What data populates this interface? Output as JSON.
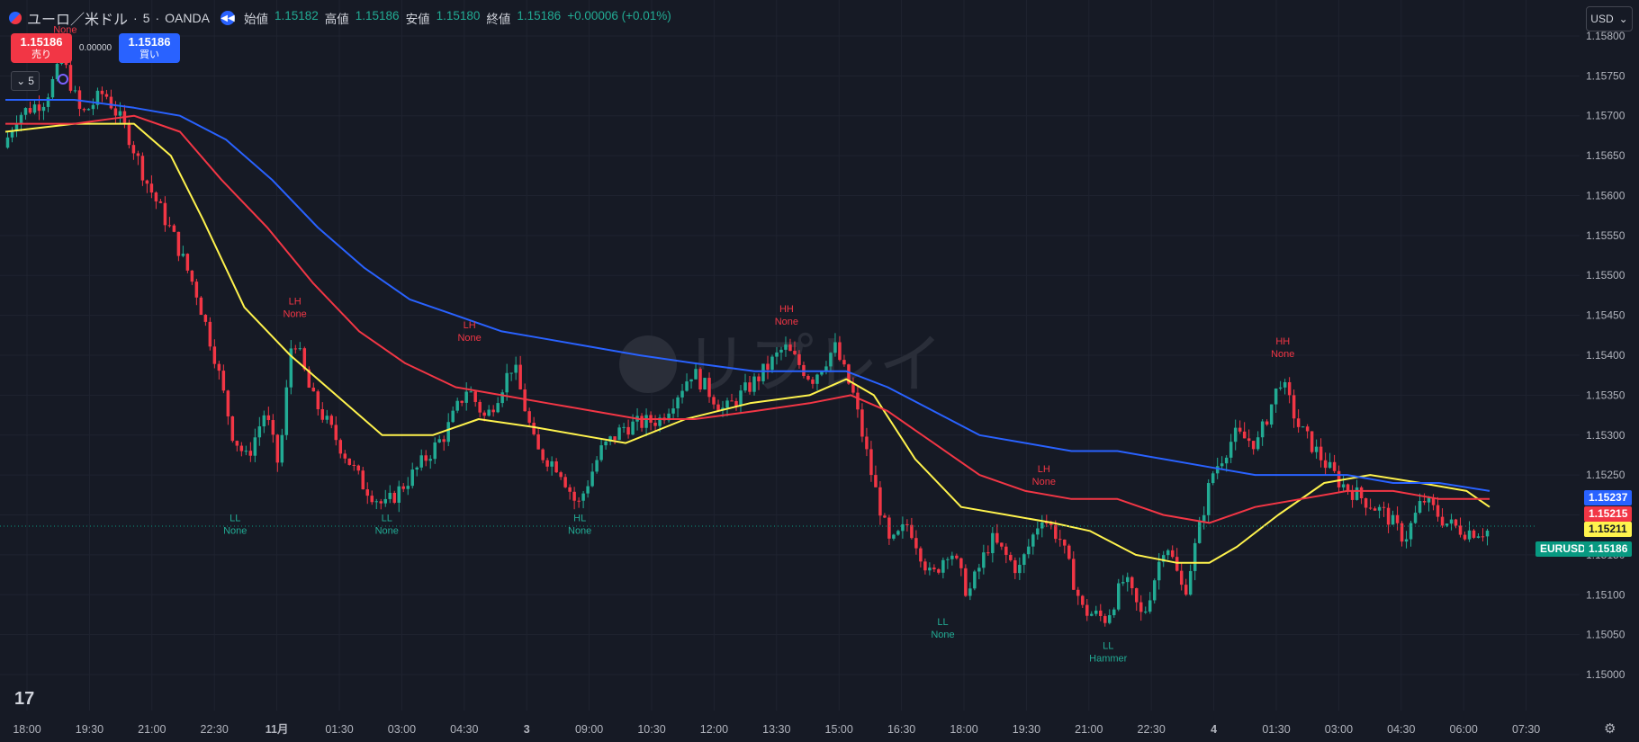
{
  "header": {
    "symbol": "ユーロ／米ドル",
    "interval": "5",
    "exchange": "OANDA",
    "separator": "·",
    "ohlc": [
      {
        "label": "始値",
        "value": "1.15182"
      },
      {
        "label": "高値",
        "value": "1.15186"
      },
      {
        "label": "安値",
        "value": "1.15180"
      },
      {
        "label": "終値",
        "value": "1.15186"
      }
    ],
    "change": "+0.00006 (+0.01%)"
  },
  "trade": {
    "sell_price": "1.15186",
    "sell_label": "売り",
    "spread": "0.00000",
    "buy_price": "1.15186",
    "buy_label": "買い"
  },
  "indicator_count": "5",
  "currency_selector": "USD",
  "watermark": "リプレイ",
  "colors": {
    "bg": "#161a25",
    "grid": "#1f2330",
    "up": "#22ab94",
    "down": "#f23645",
    "ma_fast": "#fff34d",
    "ma_mid": "#f23645",
    "ma_slow": "#2962ff",
    "label_high": "#f23645",
    "label_low": "#22ab94"
  },
  "chart_data": {
    "type": "candlestick",
    "instrument": "EURUSD",
    "price_axis": {
      "ticks": [
        1.158,
        1.1575,
        1.157,
        1.1565,
        1.156,
        1.1555,
        1.155,
        1.1545,
        1.154,
        1.1535,
        1.153,
        1.1525,
        1.152,
        1.1515,
        1.151,
        1.1505,
        1.15
      ],
      "tick_labels": [
        "1.15800",
        "1.15750",
        "1.15700",
        "1.15650",
        "1.15600",
        "1.15550",
        "1.15500",
        "1.15450",
        "1.15400",
        "1.15350",
        "1.15300",
        "1.15250",
        "1.15200",
        "1.15150",
        "1.15100",
        "1.15050",
        "1.15000"
      ],
      "range": [
        1.14955,
        1.15845
      ]
    },
    "time_axis": {
      "labels": [
        "18:00",
        "19:30",
        "21:00",
        "22:30",
        "11月",
        "01:30",
        "03:00",
        "04:30",
        "3",
        "09:00",
        "10:30",
        "12:00",
        "13:30",
        "15:00",
        "16:30",
        "18:00",
        "19:30",
        "21:00",
        "22:30",
        "4",
        "01:30",
        "03:00",
        "04:30",
        "06:00",
        "07:30"
      ],
      "bold": [
        "11月",
        "3",
        "4"
      ]
    },
    "price_path": [
      {
        "t": 0,
        "p": 1.1566
      },
      {
        "t": 0.3,
        "p": 1.157
      },
      {
        "t": 0.9,
        "p": 1.1572
      },
      {
        "t": 1.3,
        "p": 1.1577
      },
      {
        "t": 1.7,
        "p": 1.157
      },
      {
        "t": 2.2,
        "p": 1.1573
      },
      {
        "t": 2.7,
        "p": 1.1568
      },
      {
        "t": 3.1,
        "p": 1.1562
      },
      {
        "t": 3.7,
        "p": 1.1555
      },
      {
        "t": 4.2,
        "p": 1.1548
      },
      {
        "t": 4.6,
        "p": 1.154
      },
      {
        "t": 5.0,
        "p": 1.153
      },
      {
        "t": 5.3,
        "p": 1.1527
      },
      {
        "t": 5.7,
        "p": 1.1533
      },
      {
        "t": 6.0,
        "p": 1.1526
      },
      {
        "t": 6.3,
        "p": 1.1543
      },
      {
        "t": 6.7,
        "p": 1.1535
      },
      {
        "t": 7.2,
        "p": 1.153
      },
      {
        "t": 7.8,
        "p": 1.1524
      },
      {
        "t": 8.3,
        "p": 1.1521
      },
      {
        "t": 8.9,
        "p": 1.1525
      },
      {
        "t": 9.6,
        "p": 1.153
      },
      {
        "t": 10.1,
        "p": 1.1536
      },
      {
        "t": 10.5,
        "p": 1.1532
      },
      {
        "t": 11.1,
        "p": 1.1539
      },
      {
        "t": 11.6,
        "p": 1.1528
      },
      {
        "t": 12.1,
        "p": 1.1526
      },
      {
        "t": 12.5,
        "p": 1.1521
      },
      {
        "t": 13.0,
        "p": 1.1528
      },
      {
        "t": 13.5,
        "p": 1.1531
      },
      {
        "t": 14.3,
        "p": 1.1532
      },
      {
        "t": 15.0,
        "p": 1.1538
      },
      {
        "t": 15.7,
        "p": 1.1533
      },
      {
        "t": 16.4,
        "p": 1.1537
      },
      {
        "t": 17.0,
        "p": 1.1541
      },
      {
        "t": 17.6,
        "p": 1.1537
      },
      {
        "t": 18.1,
        "p": 1.1541
      },
      {
        "t": 18.5,
        "p": 1.1535
      },
      {
        "t": 18.9,
        "p": 1.1525
      },
      {
        "t": 19.3,
        "p": 1.1516
      },
      {
        "t": 19.7,
        "p": 1.1519
      },
      {
        "t": 20.2,
        "p": 1.1512
      },
      {
        "t": 20.6,
        "p": 1.1516
      },
      {
        "t": 21.0,
        "p": 1.151
      },
      {
        "t": 21.5,
        "p": 1.1517
      },
      {
        "t": 22.1,
        "p": 1.1513
      },
      {
        "t": 22.6,
        "p": 1.152
      },
      {
        "t": 23.0,
        "p": 1.1517
      },
      {
        "t": 23.5,
        "p": 1.1508
      },
      {
        "t": 24.0,
        "p": 1.1507
      },
      {
        "t": 24.4,
        "p": 1.1512
      },
      {
        "t": 24.8,
        "p": 1.1507
      },
      {
        "t": 25.3,
        "p": 1.1517
      },
      {
        "t": 25.7,
        "p": 1.151
      },
      {
        "t": 26.3,
        "p": 1.1525
      },
      {
        "t": 26.8,
        "p": 1.153
      },
      {
        "t": 27.3,
        "p": 1.1529
      },
      {
        "t": 27.8,
        "p": 1.1537
      },
      {
        "t": 28.2,
        "p": 1.1531
      },
      {
        "t": 28.7,
        "p": 1.1527
      },
      {
        "t": 29.1,
        "p": 1.1524
      },
      {
        "t": 29.6,
        "p": 1.1522
      },
      {
        "t": 30.1,
        "p": 1.152
      },
      {
        "t": 30.5,
        "p": 1.1517
      },
      {
        "t": 30.9,
        "p": 1.1522
      },
      {
        "t": 31.4,
        "p": 1.1519
      },
      {
        "t": 31.8,
        "p": 1.1518
      },
      {
        "t": 32.3,
        "p": 1.1518
      }
    ],
    "series": [
      {
        "name": "MA fast",
        "color": "#fff34d",
        "points": [
          [
            0,
            1.1568
          ],
          [
            1.5,
            1.1569
          ],
          [
            2.8,
            1.1569
          ],
          [
            3.6,
            1.1565
          ],
          [
            4.3,
            1.1557
          ],
          [
            5.2,
            1.1546
          ],
          [
            6.2,
            1.154
          ],
          [
            7.2,
            1.1535
          ],
          [
            8.2,
            1.153
          ],
          [
            9.3,
            1.153
          ],
          [
            10.3,
            1.1532
          ],
          [
            11.5,
            1.1531
          ],
          [
            12.5,
            1.153
          ],
          [
            13.5,
            1.1529
          ],
          [
            14.8,
            1.1532
          ],
          [
            16.2,
            1.1534
          ],
          [
            17.5,
            1.1535
          ],
          [
            18.3,
            1.1537
          ],
          [
            18.9,
            1.1535
          ],
          [
            19.8,
            1.1527
          ],
          [
            20.8,
            1.1521
          ],
          [
            21.8,
            1.152
          ],
          [
            22.8,
            1.1519
          ],
          [
            23.6,
            1.1518
          ],
          [
            24.6,
            1.1515
          ],
          [
            25.5,
            1.1514
          ],
          [
            26.2,
            1.1514
          ],
          [
            26.8,
            1.1516
          ],
          [
            27.7,
            1.152
          ],
          [
            28.7,
            1.1524
          ],
          [
            29.7,
            1.1525
          ],
          [
            30.8,
            1.1524
          ],
          [
            31.8,
            1.1523
          ],
          [
            32.3,
            1.1521
          ]
        ]
      },
      {
        "name": "MA mid",
        "color": "#f23645",
        "points": [
          [
            0,
            1.1569
          ],
          [
            1.5,
            1.1569
          ],
          [
            2.8,
            1.157
          ],
          [
            3.8,
            1.1568
          ],
          [
            4.7,
            1.1562
          ],
          [
            5.7,
            1.1556
          ],
          [
            6.7,
            1.1549
          ],
          [
            7.7,
            1.1543
          ],
          [
            8.7,
            1.1539
          ],
          [
            9.8,
            1.1536
          ],
          [
            10.8,
            1.1535
          ],
          [
            11.8,
            1.1534
          ],
          [
            12.8,
            1.1533
          ],
          [
            13.8,
            1.1532
          ],
          [
            15.0,
            1.1532
          ],
          [
            16.3,
            1.1533
          ],
          [
            17.5,
            1.1534
          ],
          [
            18.4,
            1.1535
          ],
          [
            19.2,
            1.1533
          ],
          [
            20.2,
            1.1529
          ],
          [
            21.2,
            1.1525
          ],
          [
            22.2,
            1.1523
          ],
          [
            23.2,
            1.1522
          ],
          [
            24.2,
            1.1522
          ],
          [
            25.2,
            1.152
          ],
          [
            26.2,
            1.1519
          ],
          [
            27.2,
            1.1521
          ],
          [
            28.2,
            1.1522
          ],
          [
            29.2,
            1.1523
          ],
          [
            30.2,
            1.1523
          ],
          [
            31.2,
            1.1522
          ],
          [
            32.3,
            1.1522
          ]
        ]
      },
      {
        "name": "MA slow",
        "color": "#2962ff",
        "points": [
          [
            0,
            1.1572
          ],
          [
            1.5,
            1.1572
          ],
          [
            2.8,
            1.1571
          ],
          [
            3.8,
            1.157
          ],
          [
            4.8,
            1.1567
          ],
          [
            5.8,
            1.1562
          ],
          [
            6.8,
            1.1556
          ],
          [
            7.8,
            1.1551
          ],
          [
            8.8,
            1.1547
          ],
          [
            9.8,
            1.1545
          ],
          [
            10.8,
            1.1543
          ],
          [
            11.8,
            1.1542
          ],
          [
            12.8,
            1.1541
          ],
          [
            13.8,
            1.154
          ],
          [
            15.0,
            1.1539
          ],
          [
            16.3,
            1.1538
          ],
          [
            17.5,
            1.1538
          ],
          [
            18.3,
            1.1538
          ],
          [
            19.2,
            1.1536
          ],
          [
            20.2,
            1.1533
          ],
          [
            21.2,
            1.153
          ],
          [
            22.2,
            1.1529
          ],
          [
            23.2,
            1.1528
          ],
          [
            24.2,
            1.1528
          ],
          [
            25.2,
            1.1527
          ],
          [
            26.2,
            1.1526
          ],
          [
            27.2,
            1.1525
          ],
          [
            28.2,
            1.1525
          ],
          [
            29.2,
            1.1525
          ],
          [
            30.2,
            1.1524
          ],
          [
            31.2,
            1.1524
          ],
          [
            32.3,
            1.1523
          ]
        ]
      }
    ],
    "pivot_labels": [
      {
        "code": "",
        "text": "None",
        "kind": "high",
        "t": 1.3,
        "p": 1.1577
      },
      {
        "code": "LH",
        "text": "None",
        "kind": "high",
        "t": 6.3,
        "p": 1.1543
      },
      {
        "code": "LH",
        "text": "None",
        "kind": "high",
        "t": 10.1,
        "p": 1.154
      },
      {
        "code": "HH",
        "text": "None",
        "kind": "high",
        "t": 17.0,
        "p": 1.1542
      },
      {
        "code": "LH",
        "text": "None",
        "kind": "high",
        "t": 22.6,
        "p": 1.1522
      },
      {
        "code": "HH",
        "text": "None",
        "kind": "high",
        "t": 27.8,
        "p": 1.1538
      },
      {
        "code": "LL",
        "text": "None",
        "kind": "low",
        "t": 5.0,
        "p": 1.1521
      },
      {
        "code": "LL",
        "text": "None",
        "kind": "low",
        "t": 8.3,
        "p": 1.1521
      },
      {
        "code": "HL",
        "text": "None",
        "kind": "low",
        "t": 12.5,
        "p": 1.1521
      },
      {
        "code": "LL",
        "text": "None",
        "kind": "low",
        "t": 20.4,
        "p": 1.1508
      },
      {
        "code": "LL",
        "text": "Hammer",
        "kind": "low",
        "t": 24.0,
        "p": 1.1505
      }
    ],
    "last_price_line": 1.15186,
    "price_badges": [
      {
        "label": "",
        "value": "1.15237",
        "color": "#2962ff",
        "text_color": "#ffffff"
      },
      {
        "label": "",
        "value": "1.15215",
        "color": "#f23645",
        "text_color": "#ffffff"
      },
      {
        "label": "",
        "value": "1.15211",
        "color": "#fff34d",
        "text_color": "#131722"
      },
      {
        "label": "EURUSD",
        "value": "1.15186",
        "color": "#089981",
        "text_color": "#ffffff"
      }
    ],
    "grid": true
  }
}
